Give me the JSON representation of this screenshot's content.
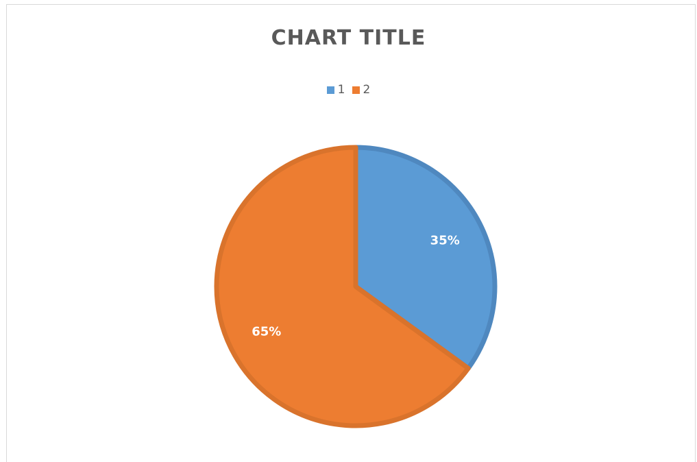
{
  "chart_data": {
    "type": "pie",
    "title": "CHART TITLE",
    "categories": [
      "1",
      "2"
    ],
    "values": [
      35,
      65
    ],
    "data_labels": [
      "35%",
      "65%"
    ],
    "colors": [
      "#5b9bd5",
      "#ed7d31"
    ],
    "border_colors": [
      "#4f88bf",
      "#d9732c"
    ],
    "legend_position": "top",
    "start_angle_deg": 0,
    "direction": "clockwise"
  }
}
